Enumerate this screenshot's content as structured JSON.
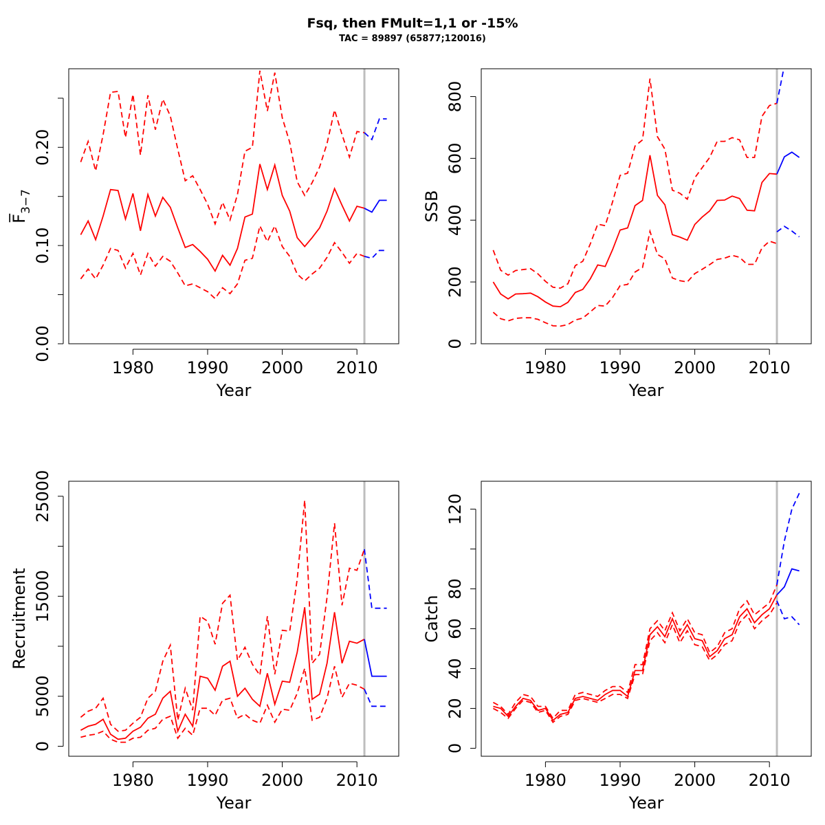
{
  "title": "Fsq, then FMult=1,1 or -15%",
  "subtitle": "TAC = 89897 (65877;120016)",
  "colors": {
    "historic": "#ff0000",
    "projection": "#0000ff",
    "vline": "#bebebe",
    "axis": "#000000"
  },
  "chart_data": [
    {
      "type": "line",
      "ylabel": "F̅",
      "ylabel_sub": "3−7",
      "xlabel": "Year",
      "xlim": [
        1971.4,
        2015.6
      ],
      "ylim": [
        0,
        0.28
      ],
      "xticks": [
        1980,
        1990,
        2000,
        2010
      ],
      "xtick_labels": [
        "1980",
        "1990",
        "2000",
        "2010"
      ],
      "yticks": [
        0,
        0.05,
        0.1,
        0.15,
        0.2,
        0.25
      ],
      "ytick_labels": [
        "0.00",
        "",
        "0.10",
        "",
        "0.20",
        ""
      ],
      "vline": 2011,
      "x": [
        1973,
        1974,
        1975,
        1976,
        1977,
        1978,
        1979,
        1980,
        1981,
        1982,
        1983,
        1984,
        1985,
        1986,
        1987,
        1988,
        1989,
        1990,
        1991,
        1992,
        1993,
        1994,
        1995,
        1996,
        1997,
        1998,
        1999,
        2000,
        2001,
        2002,
        2003,
        2004,
        2005,
        2006,
        2007,
        2008,
        2009,
        2010,
        2011
      ],
      "series": [
        {
          "role": "historic-mean",
          "values": [
            0.111,
            0.125,
            0.106,
            0.13,
            0.157,
            0.156,
            0.127,
            0.153,
            0.115,
            0.152,
            0.13,
            0.149,
            0.139,
            0.118,
            0.098,
            0.101,
            0.094,
            0.086,
            0.074,
            0.09,
            0.08,
            0.097,
            0.129,
            0.132,
            0.183,
            0.157,
            0.182,
            0.151,
            0.135,
            0.108,
            0.099,
            0.108,
            0.118,
            0.135,
            0.158,
            0.141,
            0.125,
            0.14,
            0.138
          ]
        },
        {
          "role": "historic-upper",
          "values": [
            0.185,
            0.206,
            0.176,
            0.213,
            0.256,
            0.257,
            0.21,
            0.254,
            0.192,
            0.253,
            0.218,
            0.249,
            0.232,
            0.198,
            0.166,
            0.171,
            0.157,
            0.142,
            0.122,
            0.144,
            0.126,
            0.152,
            0.196,
            0.2,
            0.278,
            0.237,
            0.276,
            0.23,
            0.205,
            0.165,
            0.151,
            0.164,
            0.18,
            0.204,
            0.238,
            0.213,
            0.19,
            0.216,
            0.215
          ]
        },
        {
          "role": "historic-lower",
          "values": [
            0.066,
            0.076,
            0.066,
            0.08,
            0.097,
            0.095,
            0.077,
            0.092,
            0.07,
            0.092,
            0.079,
            0.089,
            0.084,
            0.072,
            0.059,
            0.061,
            0.057,
            0.053,
            0.046,
            0.057,
            0.051,
            0.061,
            0.085,
            0.087,
            0.12,
            0.104,
            0.12,
            0.099,
            0.089,
            0.071,
            0.064,
            0.071,
            0.077,
            0.088,
            0.103,
            0.093,
            0.082,
            0.092,
            0.089
          ]
        }
      ],
      "projection_x": [
        2011,
        2012,
        2013,
        2014
      ],
      "projection_series": [
        {
          "role": "projection-mean",
          "values": [
            0.138,
            0.134,
            0.146,
            0.146
          ]
        },
        {
          "role": "projection-upper",
          "values": [
            0.215,
            0.208,
            0.229,
            0.229
          ]
        },
        {
          "role": "projection-lower",
          "values": [
            0.089,
            0.087,
            0.095,
            0.095
          ]
        }
      ]
    },
    {
      "type": "line",
      "ylabel": "SSB",
      "xlabel": "Year",
      "xlim": [
        1971.4,
        2015.6
      ],
      "ylim": [
        0,
        890
      ],
      "xticks": [
        1980,
        1990,
        2000,
        2010
      ],
      "xtick_labels": [
        "1980",
        "1990",
        "2000",
        "2010"
      ],
      "yticks": [
        0,
        200,
        400,
        600,
        800
      ],
      "ytick_labels": [
        "0",
        "200",
        "400",
        "600",
        "800"
      ],
      "vline": 2011,
      "x": [
        1973,
        1974,
        1975,
        1976,
        1977,
        1978,
        1979,
        1980,
        1981,
        1982,
        1983,
        1984,
        1985,
        1986,
        1987,
        1988,
        1989,
        1990,
        1991,
        1992,
        1993,
        1994,
        1995,
        1996,
        1997,
        1998,
        1999,
        2000,
        2001,
        2002,
        2003,
        2004,
        2005,
        2006,
        2007,
        2008,
        2009,
        2010,
        2011
      ],
      "series": [
        {
          "role": "historic-mean",
          "values": [
            200,
            161,
            145,
            161,
            162,
            164,
            152,
            135,
            122,
            120,
            134,
            166,
            176,
            210,
            255,
            250,
            305,
            368,
            375,
            447,
            464,
            610,
            480,
            450,
            353,
            345,
            335,
            386,
            410,
            430,
            464,
            465,
            478,
            470,
            432,
            430,
            522,
            551,
            549
          ]
        },
        {
          "role": "historic-upper",
          "values": [
            303,
            238,
            222,
            237,
            240,
            243,
            226,
            202,
            183,
            180,
            194,
            253,
            267,
            323,
            387,
            382,
            460,
            545,
            552,
            640,
            660,
            858,
            670,
            630,
            497,
            487,
            468,
            537,
            570,
            603,
            655,
            655,
            667,
            660,
            603,
            603,
            736,
            771,
            778
          ]
        },
        {
          "role": "historic-lower",
          "values": [
            102,
            81,
            74,
            82,
            84,
            84,
            79,
            68,
            58,
            57,
            62,
            77,
            83,
            103,
            124,
            122,
            150,
            188,
            192,
            232,
            247,
            364,
            289,
            275,
            213,
            204,
            200,
            227,
            241,
            256,
            273,
            277,
            286,
            280,
            257,
            257,
            310,
            332,
            324
          ]
        }
      ],
      "projection_x": [
        2011,
        2012,
        2013,
        2014
      ],
      "projection_series": [
        {
          "role": "projection-mean",
          "values": [
            549,
            605,
            620,
            603
          ]
        },
        {
          "role": "projection-upper",
          "values": [
            778,
            900,
            900,
            900
          ]
        },
        {
          "role": "projection-lower",
          "values": [
            362,
            380,
            365,
            346
          ]
        }
      ]
    },
    {
      "type": "line",
      "ylabel": "Recruitment",
      "xlabel": "Year",
      "xlim": [
        1971.4,
        2015.6
      ],
      "ylim": [
        -1000,
        26500
      ],
      "xticks": [
        1980,
        1990,
        2000,
        2010
      ],
      "xtick_labels": [
        "1980",
        "1990",
        "2000",
        "2010"
      ],
      "yticks": [
        0,
        5000,
        10000,
        15000,
        20000,
        25000
      ],
      "ytick_labels": [
        "0",
        "5000",
        "",
        "15000",
        "",
        "25000"
      ],
      "vline": 2011,
      "x": [
        1973,
        1974,
        1975,
        1976,
        1977,
        1978,
        1979,
        1980,
        1981,
        1982,
        1983,
        1984,
        1985,
        1986,
        1987,
        1988,
        1989,
        1990,
        1991,
        1992,
        1993,
        1994,
        1995,
        1996,
        1997,
        1998,
        1999,
        2000,
        2001,
        2002,
        2003,
        2004,
        2005,
        2006,
        2007,
        2008,
        2009,
        2010,
        2011
      ],
      "series": [
        {
          "role": "historic-mean",
          "values": [
            1600,
            2000,
            2200,
            2700,
            1200,
            700,
            800,
            1500,
            1900,
            2800,
            3200,
            4800,
            5500,
            1500,
            3200,
            2000,
            7000,
            6800,
            5600,
            8000,
            8500,
            5000,
            5800,
            4700,
            4000,
            7300,
            4200,
            6500,
            6400,
            9400,
            13900,
            4700,
            5200,
            8300,
            13400,
            8300,
            10500,
            10300,
            10700
          ]
        },
        {
          "role": "historic-upper",
          "values": [
            2900,
            3500,
            3800,
            4800,
            2200,
            1500,
            1600,
            2300,
            2900,
            4800,
            5500,
            8500,
            10100,
            2600,
            5800,
            3600,
            13000,
            12500,
            10200,
            14300,
            15100,
            8600,
            9900,
            8200,
            7100,
            13000,
            7200,
            11600,
            11500,
            16700,
            24600,
            8300,
            9200,
            14900,
            22300,
            14100,
            17800,
            17600,
            19700
          ]
        },
        {
          "role": "historic-lower",
          "values": [
            900,
            1100,
            1200,
            1500,
            700,
            400,
            400,
            800,
            900,
            1600,
            1800,
            2700,
            3000,
            800,
            1800,
            1100,
            3800,
            3800,
            3100,
            4600,
            4800,
            2800,
            3200,
            2600,
            2300,
            4100,
            2400,
            3700,
            3600,
            5300,
            7800,
            2600,
            2900,
            4800,
            8000,
            4900,
            6300,
            6100,
            5700
          ]
        }
      ],
      "projection_x": [
        2011,
        2012,
        2013,
        2014
      ],
      "projection_series": [
        {
          "role": "projection-mean",
          "values": [
            10700,
            7000,
            7000,
            7000
          ]
        },
        {
          "role": "projection-upper",
          "values": [
            19700,
            13800,
            13800,
            13800
          ]
        },
        {
          "role": "projection-lower",
          "values": [
            5700,
            4000,
            4000,
            4000
          ]
        }
      ]
    },
    {
      "type": "line",
      "ylabel": "Catch",
      "xlabel": "Year",
      "xlim": [
        1971.4,
        2015.6
      ],
      "ylim": [
        -4,
        134
      ],
      "xticks": [
        1980,
        1990,
        2000,
        2010
      ],
      "xtick_labels": [
        "1980",
        "1990",
        "2000",
        "2010"
      ],
      "yticks": [
        0,
        20,
        40,
        60,
        80,
        100,
        120
      ],
      "ytick_labels": [
        "0",
        "20",
        "40",
        "60",
        "80",
        "",
        "120"
      ],
      "vline": 2011,
      "x": [
        1973,
        1974,
        1975,
        1976,
        1977,
        1978,
        1979,
        1980,
        1981,
        1982,
        1983,
        1984,
        1985,
        1986,
        1987,
        1988,
        1989,
        1990,
        1991,
        1992,
        1993,
        1994,
        1995,
        1996,
        1997,
        1998,
        1999,
        2000,
        2001,
        2002,
        2003,
        2004,
        2005,
        2006,
        2007,
        2008,
        2009,
        2010,
        2011
      ],
      "series": [
        {
          "role": "historic-mean",
          "values": [
            21,
            20,
            16,
            21,
            25,
            24,
            19,
            20,
            14,
            17,
            18,
            25,
            26,
            25,
            24,
            27,
            29,
            29,
            26,
            39,
            39,
            57,
            61,
            56,
            65,
            56,
            62,
            55,
            54,
            46,
            49,
            55,
            57,
            66,
            70,
            63,
            67,
            70,
            77
          ]
        },
        {
          "role": "historic-upper",
          "values": [
            23,
            21,
            17,
            23,
            27,
            26,
            21,
            21,
            15,
            19,
            19,
            27,
            28,
            27,
            26,
            29,
            31,
            31,
            28,
            42,
            42,
            60,
            64,
            59,
            68,
            59,
            65,
            58,
            57,
            48,
            51,
            58,
            60,
            70,
            74,
            67,
            70,
            73,
            82
          ]
        },
        {
          "role": "historic-lower",
          "values": [
            20,
            18,
            15,
            20,
            24,
            23,
            18,
            19,
            13,
            16,
            17,
            24,
            25,
            24,
            23,
            25,
            27,
            27,
            25,
            37,
            37,
            54,
            58,
            53,
            62,
            53,
            59,
            52,
            51,
            44,
            47,
            52,
            54,
            63,
            67,
            60,
            64,
            67,
            73
          ]
        }
      ],
      "projection_x": [
        2011,
        2012,
        2013,
        2014
      ],
      "projection_series": [
        {
          "role": "projection-mean",
          "values": [
            77,
            81,
            90,
            89
          ]
        },
        {
          "role": "projection-upper",
          "values": [
            82,
            104,
            120,
            128
          ]
        },
        {
          "role": "projection-lower",
          "values": [
            74,
            65,
            66,
            62
          ]
        }
      ]
    }
  ]
}
